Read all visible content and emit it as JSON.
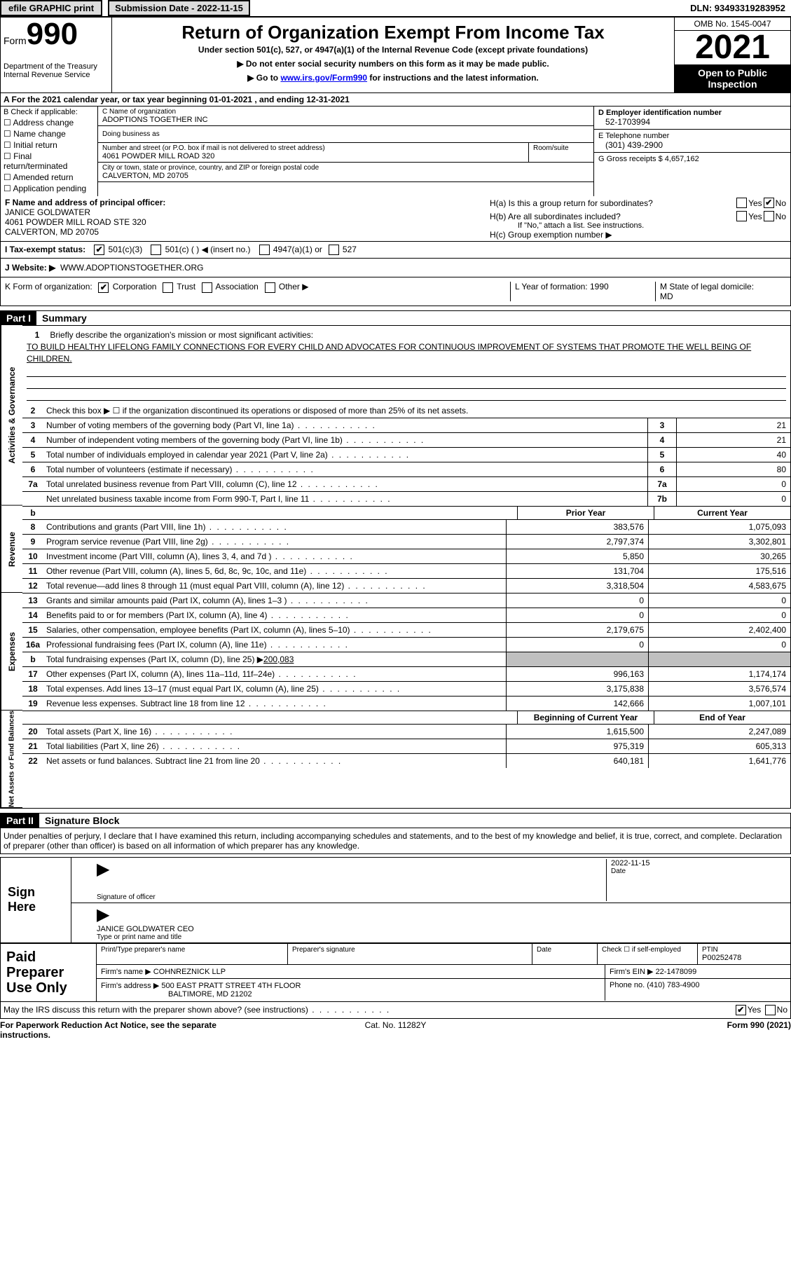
{
  "topbar": {
    "efile_label": "efile GRAPHIC print",
    "submission_label": "Submission Date - 2022-11-15",
    "dln": "DLN: 93493319283952"
  },
  "header": {
    "form_word": "Form",
    "form_number": "990",
    "dept": "Department of the Treasury",
    "irs": "Internal Revenue Service",
    "title": "Return of Organization Exempt From Income Tax",
    "sub1": "Under section 501(c), 527, or 4947(a)(1) of the Internal Revenue Code (except private foundations)",
    "sub2": "▶ Do not enter social security numbers on this form as it may be made public.",
    "sub3_pre": "▶ Go to ",
    "sub3_link": "www.irs.gov/Form990",
    "sub3_post": " for instructions and the latest information.",
    "omb": "OMB No. 1545-0047",
    "year": "2021",
    "otp": "Open to Public Inspection"
  },
  "row_a": "A For the 2021 calendar year, or tax year beginning 01-01-2021   , and ending 12-31-2021",
  "checkbox": {
    "label": "B Check if applicable:",
    "items": [
      "Address change",
      "Name change",
      "Initial return",
      "Final return/terminated",
      "Amended return",
      "Application pending"
    ]
  },
  "org": {
    "name_lbl": "C Name of organization",
    "name": "ADOPTIONS TOGETHER INC",
    "dba_lbl": "Doing business as",
    "addr_lbl": "Number and street (or P.O. box if mail is not delivered to street address)",
    "addr": "4061 POWDER MILL ROAD 320",
    "room_lbl": "Room/suite",
    "city_lbl": "City or town, state or province, country, and ZIP or foreign postal code",
    "city": "CALVERTON, MD  20705"
  },
  "right": {
    "ein_lbl": "D Employer identification number",
    "ein": "52-1703994",
    "phone_lbl": "E Telephone number",
    "phone": "(301) 439-2900",
    "gross_lbl": "G Gross receipts $",
    "gross": "4,657,162"
  },
  "officer": {
    "lbl": "F Name and address of principal officer:",
    "name": "JANICE GOLDWATER",
    "addr1": "4061 POWDER MILL ROAD STE 320",
    "addr2": "CALVERTON, MD  20705"
  },
  "h": {
    "a_lbl": "H(a)  Is this a group return for subordinates?",
    "b_lbl": "H(b)  Are all subordinates included?",
    "b_note": "If \"No,\" attach a list. See instructions.",
    "c_lbl": "H(c)  Group exemption number ▶"
  },
  "tax_status": {
    "lbl": "I    Tax-exempt status:",
    "opt1": "501(c)(3)",
    "opt2": "501(c) (  ) ◀ (insert no.)",
    "opt3": "4947(a)(1) or",
    "opt4": "527"
  },
  "website": {
    "lbl": "J    Website: ▶",
    "val": "WWW.ADOPTIONSTOGETHER.ORG"
  },
  "form_org": {
    "lbl": "K Form of organization:",
    "opts": [
      "Corporation",
      "Trust",
      "Association",
      "Other ▶"
    ],
    "year_lbl": "L Year of formation:",
    "year_val": "1990",
    "state_lbl": "M State of legal domicile:",
    "state_val": "MD"
  },
  "part1": {
    "tag": "Part I",
    "title": "Summary",
    "line1_lbl": "Briefly describe the organization's mission or most significant activities:",
    "mission": "TO BUILD HEALTHY LIFELONG FAMILY CONNECTIONS FOR EVERY CHILD AND ADVOCATES FOR CONTINUOUS IMPROVEMENT OF SYSTEMS THAT PROMOTE THE WELL BEING OF CHILDREN.",
    "line2": "Check this box ▶ ☐ if the organization discontinued its operations or disposed of more than 25% of its net assets.",
    "ag_label": "Activities & Governance",
    "rev_label": "Revenue",
    "exp_label": "Expenses",
    "na_label": "Net Assets or Fund Balances",
    "lines_simple": [
      {
        "n": "3",
        "d": "Number of voting members of the governing body (Part VI, line 1a)",
        "box": "3",
        "v": "21"
      },
      {
        "n": "4",
        "d": "Number of independent voting members of the governing body (Part VI, line 1b)",
        "box": "4",
        "v": "21"
      },
      {
        "n": "5",
        "d": "Total number of individuals employed in calendar year 2021 (Part V, line 2a)",
        "box": "5",
        "v": "40"
      },
      {
        "n": "6",
        "d": "Total number of volunteers (estimate if necessary)",
        "box": "6",
        "v": "80"
      },
      {
        "n": "7a",
        "d": "Total unrelated business revenue from Part VIII, column (C), line 12",
        "box": "7a",
        "v": "0"
      },
      {
        "n": "",
        "d": "Net unrelated business taxable income from Form 990-T, Part I, line 11",
        "box": "7b",
        "v": "0"
      }
    ],
    "py_label": "Prior Year",
    "cy_label": "Current Year",
    "rev_lines": [
      {
        "n": "8",
        "d": "Contributions and grants (Part VIII, line 1h)",
        "py": "383,576",
        "cy": "1,075,093"
      },
      {
        "n": "9",
        "d": "Program service revenue (Part VIII, line 2g)",
        "py": "2,797,374",
        "cy": "3,302,801"
      },
      {
        "n": "10",
        "d": "Investment income (Part VIII, column (A), lines 3, 4, and 7d )",
        "py": "5,850",
        "cy": "30,265"
      },
      {
        "n": "11",
        "d": "Other revenue (Part VIII, column (A), lines 5, 6d, 8c, 9c, 10c, and 11e)",
        "py": "131,704",
        "cy": "175,516"
      },
      {
        "n": "12",
        "d": "Total revenue—add lines 8 through 11 (must equal Part VIII, column (A), line 12)",
        "py": "3,318,504",
        "cy": "4,583,675"
      }
    ],
    "exp_lines": [
      {
        "n": "13",
        "d": "Grants and similar amounts paid (Part IX, column (A), lines 1–3 )",
        "py": "0",
        "cy": "0"
      },
      {
        "n": "14",
        "d": "Benefits paid to or for members (Part IX, column (A), line 4)",
        "py": "0",
        "cy": "0"
      },
      {
        "n": "15",
        "d": "Salaries, other compensation, employee benefits (Part IX, column (A), lines 5–10)",
        "py": "2,179,675",
        "cy": "2,402,400"
      },
      {
        "n": "16a",
        "d": "Professional fundraising fees (Part IX, column (A), line 11e)",
        "py": "0",
        "cy": "0"
      }
    ],
    "line16b": {
      "n": "b",
      "d": "Total fundraising expenses (Part IX, column (D), line 25) ▶",
      "v": "200,083"
    },
    "exp_lines2": [
      {
        "n": "17",
        "d": "Other expenses (Part IX, column (A), lines 11a–11d, 11f–24e)",
        "py": "996,163",
        "cy": "1,174,174"
      },
      {
        "n": "18",
        "d": "Total expenses. Add lines 13–17 (must equal Part IX, column (A), line 25)",
        "py": "3,175,838",
        "cy": "3,576,574"
      },
      {
        "n": "19",
        "d": "Revenue less expenses. Subtract line 18 from line 12",
        "py": "142,666",
        "cy": "1,007,101"
      }
    ],
    "boy_label": "Beginning of Current Year",
    "eoy_label": "End of Year",
    "na_lines": [
      {
        "n": "20",
        "d": "Total assets (Part X, line 16)",
        "py": "1,615,500",
        "cy": "2,247,089"
      },
      {
        "n": "21",
        "d": "Total liabilities (Part X, line 26)",
        "py": "975,319",
        "cy": "605,313"
      },
      {
        "n": "22",
        "d": "Net assets or fund balances. Subtract line 21 from line 20",
        "py": "640,181",
        "cy": "1,641,776"
      }
    ]
  },
  "part2": {
    "tag": "Part II",
    "title": "Signature Block",
    "intro": "Under penalties of perjury, I declare that I have examined this return, including accompanying schedules and statements, and to the best of my knowledge and belief, it is true, correct, and complete. Declaration of preparer (other than officer) is based on all information of which preparer has any knowledge.",
    "sign_label": "Sign Here",
    "sig_of_officer": "Signature of officer",
    "sig_date": "2022-11-15",
    "date_lbl": "Date",
    "officer_name": "JANICE GOLDWATER  CEO",
    "type_name_lbl": "Type or print name and title",
    "prep_label": "Paid Preparer Use Only",
    "prep_name_lbl": "Print/Type preparer's name",
    "prep_sig_lbl": "Preparer's signature",
    "prep_check_lbl": "Check ☐ if self-employed",
    "ptin_lbl": "PTIN",
    "ptin": "P00252478",
    "firm_name_lbl": "Firm's name    ▶",
    "firm_name": "COHNREZNICK LLP",
    "firm_ein_lbl": "Firm's EIN ▶",
    "firm_ein": "22-1478099",
    "firm_addr_lbl": "Firm's address ▶",
    "firm_addr1": "500 EAST PRATT STREET 4TH FLOOR",
    "firm_addr2": "BALTIMORE, MD  21202",
    "phone_lbl": "Phone no.",
    "phone": "(410) 783-4900",
    "discuss": "May the IRS discuss this return with the preparer shown above? (see instructions)",
    "yes": "Yes",
    "no": "No"
  },
  "footer": {
    "left": "For Paperwork Reduction Act Notice, see the separate instructions.",
    "center": "Cat. No. 11282Y",
    "right": "Form 990 (2021)"
  }
}
